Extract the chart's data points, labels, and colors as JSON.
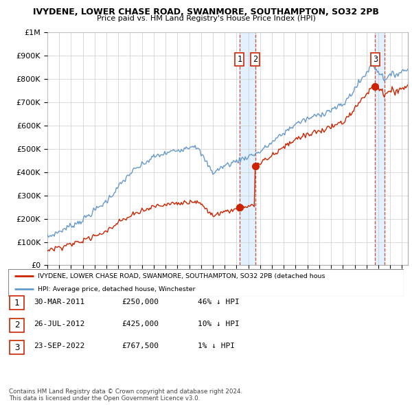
{
  "title": "IVYDENE, LOWER CHASE ROAD, SWANMORE, SOUTHAMPTON, SO32 2PB",
  "subtitle": "Price paid vs. HM Land Registry's House Price Index (HPI)",
  "ylim": [
    0,
    1000000
  ],
  "yticks": [
    0,
    100000,
    200000,
    300000,
    400000,
    500000,
    600000,
    700000,
    800000,
    900000,
    1000000
  ],
  "ytick_labels": [
    "£0",
    "£100K",
    "£200K",
    "£300K",
    "£400K",
    "£500K",
    "£600K",
    "£700K",
    "£800K",
    "£900K",
    "£1M"
  ],
  "xlim_start": 1995.0,
  "xlim_end": 2025.5,
  "hpi_color": "#6699cc",
  "sale_color": "#cc2200",
  "shade_color": "#ddeeff",
  "sale_points": [
    {
      "year": 2011.25,
      "price": 250000,
      "label": "1"
    },
    {
      "year": 2012.58,
      "price": 425000,
      "label": "2"
    },
    {
      "year": 2022.73,
      "price": 767500,
      "label": "3"
    }
  ],
  "vline_pairs": [
    [
      2011.25,
      2012.58
    ],
    [
      2022.73,
      2023.5
    ]
  ],
  "legend_entries": [
    {
      "label": "IVYDENE, LOWER CHASE ROAD, SWANMORE, SOUTHAMPTON, SO32 2PB (detached hous",
      "color": "#cc2200"
    },
    {
      "label": "HPI: Average price, detached house, Winchester",
      "color": "#6699cc"
    }
  ],
  "table_rows": [
    {
      "num": "1",
      "date": "30-MAR-2011",
      "price": "£250,000",
      "hpi": "46% ↓ HPI"
    },
    {
      "num": "2",
      "date": "26-JUL-2012",
      "price": "£425,000",
      "hpi": "10% ↓ HPI"
    },
    {
      "num": "3",
      "date": "23-SEP-2022",
      "price": "£767,500",
      "hpi": "1% ↓ HPI"
    }
  ],
  "footer": "Contains HM Land Registry data © Crown copyright and database right 2024.\nThis data is licensed under the Open Government Licence v3.0.",
  "background_color": "#ffffff",
  "grid_color": "#cccccc"
}
